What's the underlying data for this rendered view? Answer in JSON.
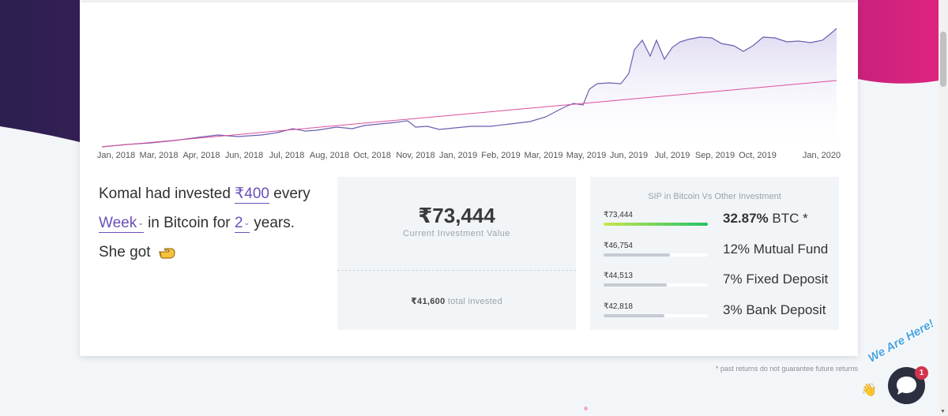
{
  "chart": {
    "x_labels": [
      "Jan, 2018",
      "Mar, 2018",
      "Apr, 2018",
      "Jun, 2018",
      "Jul, 2018",
      "Aug, 2018",
      "Oct, 2018",
      "Nov, 2018",
      "Jan, 2019",
      "Feb, 2019",
      "Mar, 2019",
      "May, 2019",
      "Jun, 2019",
      "Jul, 2019",
      "Sep, 2019",
      "Oct, 2019",
      "Jan, 2020"
    ],
    "colors": {
      "value_line": "#6c5fb0",
      "value_fill": "#e8e4f5",
      "invested_line": "#d9509c"
    }
  },
  "sentence": {
    "part1": "Komal had invested",
    "amount": "₹400",
    "part2": "every",
    "frequency": "Week",
    "part3": "in Bitcoin for",
    "years": "2",
    "part4": "years.",
    "part5": "She got",
    "icon": "pointing-hand-icon"
  },
  "result": {
    "current_value": "₹73,444",
    "current_label": "Current Investment Value",
    "total_invested": "₹41,600",
    "total_label": "total invested"
  },
  "comparison": {
    "title": "SIP in Bitcoin Vs Other Investment",
    "rows": [
      {
        "amount": "₹73,444",
        "rate": "32.87%",
        "name": "BTC *",
        "fill": 1.0,
        "color": "gradient-green"
      },
      {
        "amount": "₹46,754",
        "rate": "12%",
        "name": "Mutual Fund",
        "fill": 0.636,
        "color": "#c5cad3"
      },
      {
        "amount": "₹44,513",
        "rate": "7%",
        "name": "Fixed Deposit",
        "fill": 0.606,
        "color": "#c5cad3"
      },
      {
        "amount": "₹42,818",
        "rate": "3%",
        "name": "Bank Deposit",
        "fill": 0.583,
        "color": "#c5cad3"
      }
    ]
  },
  "footnote": "* past returns do not guarantee future returns",
  "chat": {
    "label": "We Are Here!",
    "badge": "1"
  }
}
